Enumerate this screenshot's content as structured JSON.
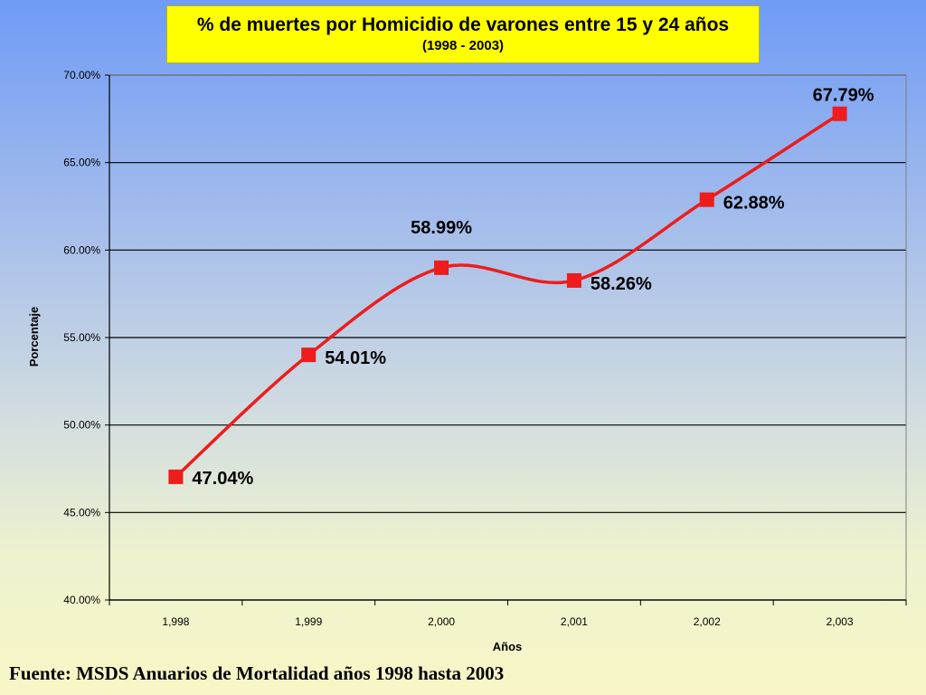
{
  "chart_data": {
    "type": "line",
    "title": "% de muertes por Homicidio de varones entre 15 y 24 años",
    "subtitle": "(1998 - 2003)",
    "xlabel": "Años",
    "ylabel": "Porcentaje",
    "categories": [
      "1,998",
      "1,999",
      "2,000",
      "2,001",
      "2,002",
      "2,003"
    ],
    "series": [
      {
        "values": [
          47.04,
          54.01,
          58.99,
          58.26,
          62.88,
          67.79
        ],
        "labels": [
          "47.04%",
          "54.01%",
          "58.99%",
          "58.26%",
          "62.88%",
          "67.79%"
        ]
      }
    ],
    "ylim": [
      40,
      70
    ],
    "yticks": [
      40,
      45,
      50,
      55,
      60,
      65,
      70
    ],
    "ytick_labels": [
      "40.00%",
      "45.00%",
      "50.00%",
      "55.00%",
      "60.00%",
      "65.00%",
      "70.00%"
    ],
    "grid": true,
    "line_color": "#ee1c1c",
    "marker_color": "#ee1c1c",
    "marker": "square",
    "smooth": true,
    "title_background": "#ffff00"
  },
  "source_note": "Fuente: MSDS Anuarios de Mortalidad años 1998 hasta 2003"
}
